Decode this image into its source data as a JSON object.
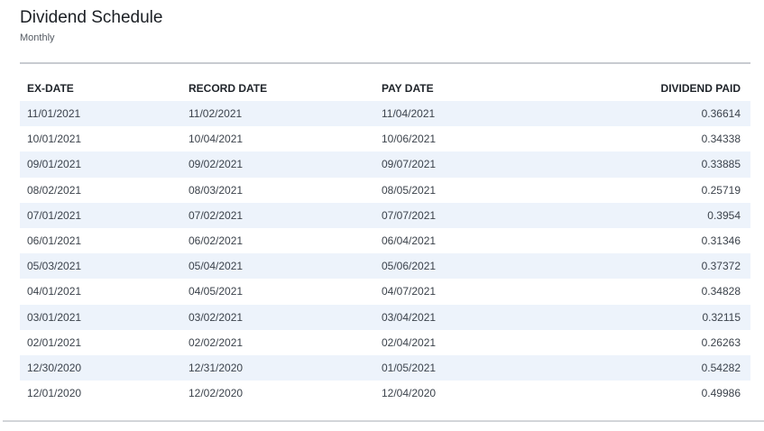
{
  "header": {
    "title": "Dividend Schedule",
    "subtitle": "Monthly"
  },
  "table": {
    "columns": [
      "EX-DATE",
      "RECORD DATE",
      "PAY DATE",
      "DIVIDEND PAID"
    ],
    "rows": [
      [
        "11/01/2021",
        "11/02/2021",
        "11/04/2021",
        "0.36614"
      ],
      [
        "10/01/2021",
        "10/04/2021",
        "10/06/2021",
        "0.34338"
      ],
      [
        "09/01/2021",
        "09/02/2021",
        "09/07/2021",
        "0.33885"
      ],
      [
        "08/02/2021",
        "08/03/2021",
        "08/05/2021",
        "0.25719"
      ],
      [
        "07/01/2021",
        "07/02/2021",
        "07/07/2021",
        "0.3954"
      ],
      [
        "06/01/2021",
        "06/02/2021",
        "06/04/2021",
        "0.31346"
      ],
      [
        "05/03/2021",
        "05/04/2021",
        "05/06/2021",
        "0.37372"
      ],
      [
        "04/01/2021",
        "04/05/2021",
        "04/07/2021",
        "0.34828"
      ],
      [
        "03/01/2021",
        "03/02/2021",
        "03/04/2021",
        "0.32115"
      ],
      [
        "02/01/2021",
        "02/02/2021",
        "02/04/2021",
        "0.26263"
      ],
      [
        "12/30/2020",
        "12/31/2020",
        "01/05/2021",
        "0.54282"
      ],
      [
        "12/01/2020",
        "12/02/2020",
        "12/04/2020",
        "0.49986"
      ]
    ]
  },
  "colors": {
    "stripe": "#edf3fb",
    "rule": "#c8cbd0"
  }
}
